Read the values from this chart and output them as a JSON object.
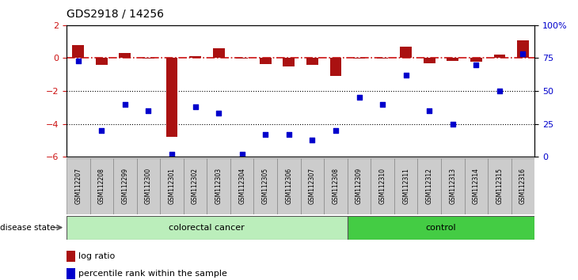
{
  "title": "GDS2918 / 14256",
  "samples": [
    "GSM112207",
    "GSM112208",
    "GSM112299",
    "GSM112300",
    "GSM112301",
    "GSM112302",
    "GSM112303",
    "GSM112304",
    "GSM112305",
    "GSM112306",
    "GSM112307",
    "GSM112308",
    "GSM112309",
    "GSM112310",
    "GSM112311",
    "GSM112312",
    "GSM112313",
    "GSM112314",
    "GSM112315",
    "GSM112316"
  ],
  "log_ratio": [
    0.8,
    -0.4,
    0.3,
    -0.05,
    -4.8,
    0.1,
    0.6,
    -0.05,
    -0.35,
    -0.5,
    -0.4,
    -1.1,
    -0.05,
    -0.05,
    0.7,
    -0.3,
    -0.15,
    -0.2,
    0.2,
    1.1
  ],
  "percentile_rank": [
    73,
    20,
    40,
    35,
    2,
    38,
    33,
    2,
    17,
    17,
    13,
    20,
    45,
    40,
    62,
    35,
    25,
    70,
    50,
    78
  ],
  "colorectal_cancer_count": 12,
  "control_count": 8,
  "bar_color": "#AA1111",
  "dot_color": "#0000CC",
  "dashed_line_color": "#CC1111",
  "ylim_left": [
    -6.0,
    2.0
  ],
  "ylim_right": [
    0,
    100
  ],
  "yticks_left": [
    2,
    0,
    -2,
    -4,
    -6
  ],
  "yticks_right": [
    100,
    75,
    50,
    25,
    0
  ],
  "ytick_right_labels": [
    "100%",
    "75",
    "50",
    "25",
    "0"
  ],
  "colorectal_color": "#BBEEBB",
  "control_color": "#44CC44",
  "colorectal_label": "colorectal cancer",
  "control_label": "control",
  "disease_label": "disease state",
  "legend_log": "log ratio",
  "legend_pct": "percentile rank within the sample",
  "tick_box_color": "#CCCCCC",
  "tick_box_edge": "#888888"
}
